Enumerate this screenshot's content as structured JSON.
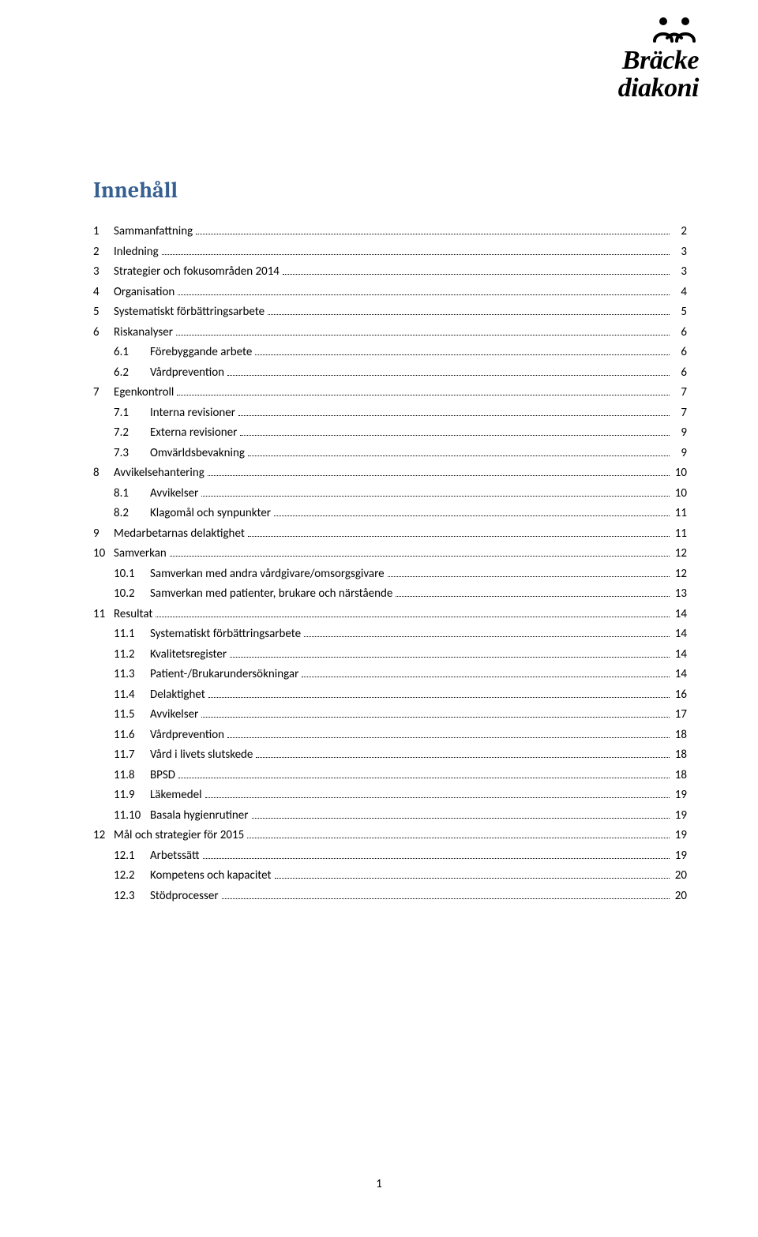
{
  "logo": {
    "line1": "Bräcke",
    "line2": "diakoni",
    "glyph_color": "#000000"
  },
  "title": {
    "text": "Innehåll",
    "color": "#365f91",
    "fontsize": 28
  },
  "toc": {
    "font_size": 15,
    "text_color": "#000000",
    "dot_color": "#000000",
    "entries": [
      {
        "level": 1,
        "num": "1",
        "label": "Sammanfattning",
        "page": "2"
      },
      {
        "level": 1,
        "num": "2",
        "label": "Inledning",
        "page": "3"
      },
      {
        "level": 1,
        "num": "3",
        "label": "Strategier och fokusområden 2014",
        "page": "3"
      },
      {
        "level": 1,
        "num": "4",
        "label": "Organisation",
        "page": "4"
      },
      {
        "level": 1,
        "num": "5",
        "label": "Systematiskt förbättringsarbete",
        "page": "5"
      },
      {
        "level": 1,
        "num": "6",
        "label": "Riskanalyser",
        "page": "6"
      },
      {
        "level": 2,
        "num": "6.1",
        "label": "Förebyggande arbete",
        "page": "6"
      },
      {
        "level": 2,
        "num": "6.2",
        "label": "Vårdprevention",
        "page": "6"
      },
      {
        "level": 1,
        "num": "7",
        "label": "Egenkontroll",
        "page": "7"
      },
      {
        "level": 2,
        "num": "7.1",
        "label": "Interna revisioner",
        "page": "7"
      },
      {
        "level": 2,
        "num": "7.2",
        "label": "Externa revisioner",
        "page": "9"
      },
      {
        "level": 2,
        "num": "7.3",
        "label": "Omvärldsbevakning",
        "page": "9"
      },
      {
        "level": 1,
        "num": "8",
        "label": "Avvikelsehantering",
        "page": "10"
      },
      {
        "level": 2,
        "num": "8.1",
        "label": "Avvikelser",
        "page": "10"
      },
      {
        "level": 2,
        "num": "8.2",
        "label": "Klagomål och synpunkter",
        "page": "11"
      },
      {
        "level": 1,
        "num": "9",
        "label": "Medarbetarnas delaktighet",
        "page": "11"
      },
      {
        "level": 1,
        "num": "10",
        "label": "Samverkan",
        "page": "12"
      },
      {
        "level": 2,
        "num": "10.1",
        "label": "Samverkan med andra vårdgivare/omsorgsgivare",
        "page": "12"
      },
      {
        "level": 2,
        "num": "10.2",
        "label": "Samverkan med patienter, brukare och närstående",
        "page": "13"
      },
      {
        "level": 1,
        "num": "11",
        "label": "Resultat",
        "page": "14"
      },
      {
        "level": 2,
        "num": "11.1",
        "label": "Systematiskt förbättringsarbete",
        "page": "14"
      },
      {
        "level": 2,
        "num": "11.2",
        "label": "Kvalitetsregister",
        "page": "14"
      },
      {
        "level": 2,
        "num": "11.3",
        "label": "Patient-/Brukarundersökningar",
        "page": "14"
      },
      {
        "level": 2,
        "num": "11.4",
        "label": "Delaktighet",
        "page": "16"
      },
      {
        "level": 2,
        "num": "11.5",
        "label": "Avvikelser",
        "page": "17"
      },
      {
        "level": 2,
        "num": "11.6",
        "label": "Vårdprevention",
        "page": "18"
      },
      {
        "level": 2,
        "num": "11.7",
        "label": "Vård i livets slutskede",
        "page": "18"
      },
      {
        "level": 2,
        "num": "11.8",
        "label": "BPSD",
        "page": "18"
      },
      {
        "level": 2,
        "num": "11.9",
        "label": "Läkemedel",
        "page": "19"
      },
      {
        "level": 2,
        "num": "11.10",
        "label": "Basala hygienrutiner",
        "page": "19"
      },
      {
        "level": 1,
        "num": "12",
        "label": "Mål och strategier för 2015",
        "page": "19"
      },
      {
        "level": 2,
        "num": "12.1",
        "label": "Arbetssätt",
        "page": "19"
      },
      {
        "level": 2,
        "num": "12.2",
        "label": "Kompetens och kapacitet",
        "page": "20"
      },
      {
        "level": 2,
        "num": "12.3",
        "label": "Stödprocesser",
        "page": "20"
      }
    ]
  },
  "footer": {
    "page_number": "1"
  }
}
